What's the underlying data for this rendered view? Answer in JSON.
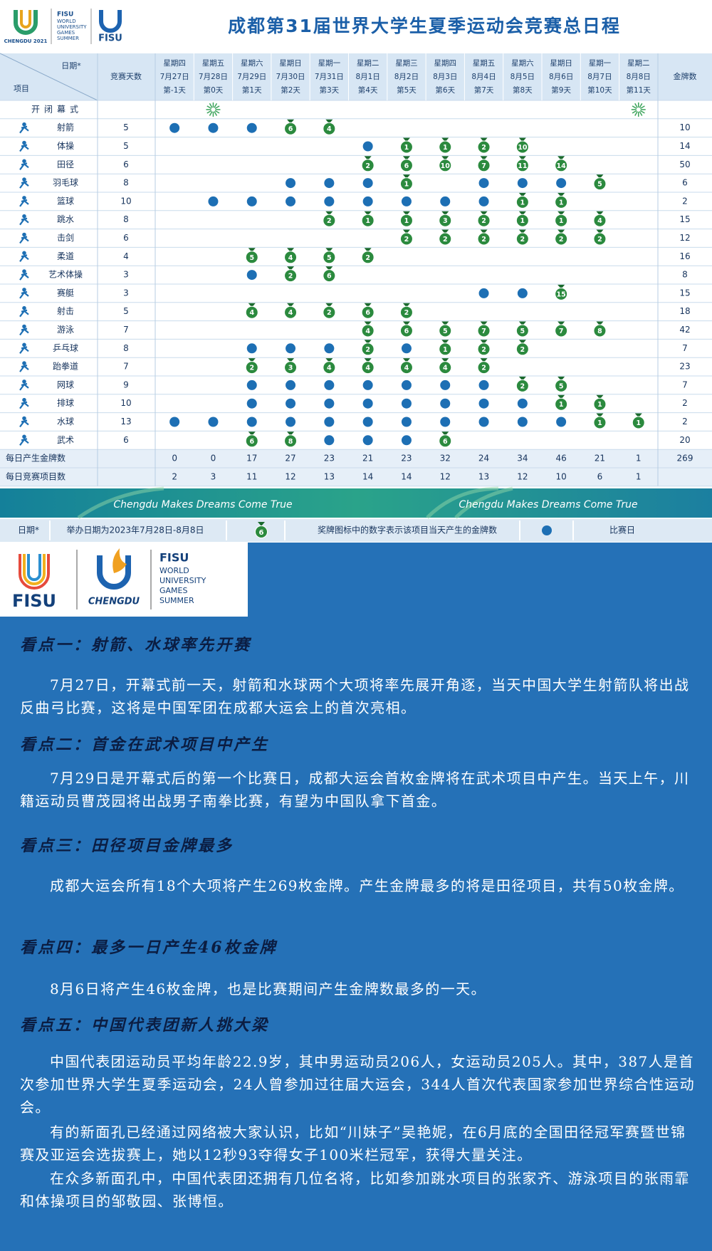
{
  "header": {
    "logo_left": "CHENGDU 2021",
    "fisu_lines": [
      "FISU",
      "WORLD",
      "UNIVERSITY",
      "GAMES",
      "SUMMER"
    ],
    "logo_right": "FISU",
    "title": "成都第31届世界大学生夏季运动会竞赛总日程"
  },
  "table": {
    "corner_date": "日期*",
    "corner_item": "项目",
    "days_header": "竞赛天数",
    "gold_header": "金牌数",
    "dates": [
      {
        "weekday": "星期四",
        "date": "7月27日",
        "day": "第-1天"
      },
      {
        "weekday": "星期五",
        "date": "7月28日",
        "day": "第0天"
      },
      {
        "weekday": "星期六",
        "date": "7月29日",
        "day": "第1天"
      },
      {
        "weekday": "星期日",
        "date": "7月30日",
        "day": "第2天"
      },
      {
        "weekday": "星期一",
        "date": "7月31日",
        "day": "第3天"
      },
      {
        "weekday": "星期二",
        "date": "8月1日",
        "day": "第4天"
      },
      {
        "weekday": "星期三",
        "date": "8月2日",
        "day": "第5天"
      },
      {
        "weekday": "星期四",
        "date": "8月3日",
        "day": "第6天"
      },
      {
        "weekday": "星期五",
        "date": "8月4日",
        "day": "第7天"
      },
      {
        "weekday": "星期六",
        "date": "8月5日",
        "day": "第8天"
      },
      {
        "weekday": "星期日",
        "date": "8月6日",
        "day": "第9天"
      },
      {
        "weekday": "星期一",
        "date": "8月7日",
        "day": "第10天"
      },
      {
        "weekday": "星期二",
        "date": "8月8日",
        "day": "第11天"
      }
    ],
    "ceremony": "开闭幕式",
    "sports": [
      {
        "name": "射箭",
        "days": 5,
        "gold": 10,
        "cells": [
          0,
          0,
          0,
          6,
          4,
          null,
          null,
          null,
          null,
          null,
          null,
          null,
          null
        ]
      },
      {
        "name": "体操",
        "days": 5,
        "gold": 14,
        "cells": [
          null,
          null,
          null,
          null,
          null,
          0,
          1,
          1,
          2,
          10,
          null,
          null,
          null
        ]
      },
      {
        "name": "田径",
        "days": 6,
        "gold": 50,
        "cells": [
          null,
          null,
          null,
          null,
          null,
          2,
          6,
          10,
          7,
          11,
          14,
          null,
          null
        ]
      },
      {
        "name": "羽毛球",
        "days": 8,
        "gold": 6,
        "cells": [
          null,
          null,
          null,
          0,
          0,
          0,
          1,
          null,
          0,
          0,
          0,
          5,
          null
        ]
      },
      {
        "name": "篮球",
        "days": 10,
        "gold": 2,
        "cells": [
          null,
          0,
          0,
          0,
          0,
          0,
          0,
          0,
          0,
          1,
          1,
          null,
          null
        ]
      },
      {
        "name": "跳水",
        "days": 8,
        "gold": 15,
        "cells": [
          null,
          null,
          null,
          null,
          2,
          1,
          1,
          3,
          2,
          1,
          1,
          4,
          null
        ]
      },
      {
        "name": "击剑",
        "days": 6,
        "gold": 12,
        "cells": [
          null,
          null,
          null,
          null,
          null,
          null,
          2,
          2,
          2,
          2,
          2,
          2,
          null
        ]
      },
      {
        "name": "柔道",
        "days": 4,
        "gold": 16,
        "cells": [
          null,
          null,
          5,
          4,
          5,
          2,
          null,
          null,
          null,
          null,
          null,
          null,
          null
        ]
      },
      {
        "name": "艺术体操",
        "days": 3,
        "gold": 8,
        "cells": [
          null,
          null,
          0,
          2,
          6,
          null,
          null,
          null,
          null,
          null,
          null,
          null,
          null
        ]
      },
      {
        "name": "赛艇",
        "days": 3,
        "gold": 15,
        "cells": [
          null,
          null,
          null,
          null,
          null,
          null,
          null,
          null,
          0,
          0,
          15,
          null,
          null
        ]
      },
      {
        "name": "射击",
        "days": 5,
        "gold": 18,
        "cells": [
          null,
          null,
          4,
          4,
          2,
          6,
          2,
          null,
          null,
          null,
          null,
          null,
          null
        ]
      },
      {
        "name": "游泳",
        "days": 7,
        "gold": 42,
        "cells": [
          null,
          null,
          null,
          null,
          null,
          4,
          6,
          5,
          7,
          5,
          7,
          8,
          null
        ]
      },
      {
        "name": "乒乓球",
        "days": 8,
        "gold": 7,
        "cells": [
          null,
          null,
          0,
          0,
          0,
          2,
          0,
          1,
          2,
          2,
          null,
          null,
          null
        ]
      },
      {
        "name": "跆拳道",
        "days": 7,
        "gold": 23,
        "cells": [
          null,
          null,
          2,
          3,
          4,
          4,
          4,
          4,
          2,
          null,
          null,
          null,
          null
        ]
      },
      {
        "name": "网球",
        "days": 9,
        "gold": 7,
        "cells": [
          null,
          null,
          0,
          0,
          0,
          0,
          0,
          0,
          0,
          2,
          5,
          null,
          null
        ]
      },
      {
        "name": "排球",
        "days": 10,
        "gold": 2,
        "cells": [
          null,
          null,
          0,
          0,
          0,
          0,
          0,
          0,
          0,
          0,
          1,
          1,
          null
        ]
      },
      {
        "name": "水球",
        "days": 13,
        "gold": 2,
        "cells": [
          0,
          0,
          0,
          0,
          0,
          0,
          0,
          0,
          0,
          0,
          0,
          1,
          1
        ]
      },
      {
        "name": "武术",
        "days": 6,
        "gold": 20,
        "cells": [
          null,
          null,
          6,
          8,
          0,
          0,
          0,
          6,
          null,
          null,
          null,
          null,
          null
        ]
      }
    ],
    "totals": [
      {
        "label": "每日产生金牌数",
        "values": [
          0,
          0,
          17,
          27,
          23,
          21,
          23,
          32,
          24,
          34,
          46,
          21,
          1
        ],
        "total": 269
      },
      {
        "label": "每日竞赛项目数",
        "values": [
          2,
          3,
          11,
          12,
          13,
          14,
          14,
          12,
          13,
          12,
          10,
          6,
          1
        ]
      }
    ]
  },
  "banner": [
    "Chengdu Makes Dreams Come True",
    "Chengdu Makes Dreams Come True"
  ],
  "legend": {
    "date_label": "日期*",
    "date_text": "举办日期为2023年7月28日-8月8日",
    "medal_example": 6,
    "medal_text": "奖牌图标中的数字表示该项目当天产生的金牌数",
    "dot_text": "比赛日"
  },
  "logo_block": {
    "fisu": "FISU",
    "chengdu": "CHENGDU",
    "fisu_lines": [
      "FISU",
      "WORLD",
      "UNIVERSITY",
      "GAMES",
      "SUMMER"
    ]
  },
  "sections": [
    {
      "heading": "看点一：射箭、水球率先开赛",
      "paragraphs": [
        "7月27日，开幕式前一天，射箭和水球两个大项将率先展开角逐，当天中国大学生射箭队将出战反曲弓比赛，这将是中国军团在成都大运会上的首次亮相。"
      ]
    },
    {
      "heading": "看点二：首金在武术项目中产生",
      "paragraphs": [
        "7月29日是开幕式后的第一个比赛日，成都大运会首枚金牌将在武术项目中产生。当天上午，川籍运动员曹茂园将出战男子南拳比赛，有望为中国队拿下首金。"
      ]
    },
    {
      "heading": "看点三：田径项目金牌最多",
      "paragraphs": [
        "成都大运会所有18个大项将产生269枚金牌。产生金牌最多的将是田径项目，共有50枚金牌。"
      ]
    },
    {
      "heading": "看点四：最多一日产生46枚金牌",
      "paragraphs": [
        "8月6日将产生46枚金牌，也是比赛期间产生金牌数最多的一天。"
      ]
    },
    {
      "heading": "看点五：中国代表团新人挑大梁",
      "paragraphs": [
        "中国代表团运动员平均年龄22.9岁，其中男运动员206人，女运动员205人。其中，387人是首次参加世界大学生夏季运动会，24人曾参加过往届大运会，344人首次代表国家参加世界综合性运动会。",
        "有的新面孔已经通过网络被大家认识，比如“川妹子”吴艳妮，在6月底的全国田径冠军赛暨世锦赛及亚运会选拔赛上，她以12秒93夺得女子100米栏冠军，获得大量关注。",
        "在众多新面孔中，中国代表团还拥有几位名将，比如参加跳水项目的张家齐、游泳项目的张雨霏和体操项目的邹敬园、张博恒。"
      ]
    }
  ]
}
